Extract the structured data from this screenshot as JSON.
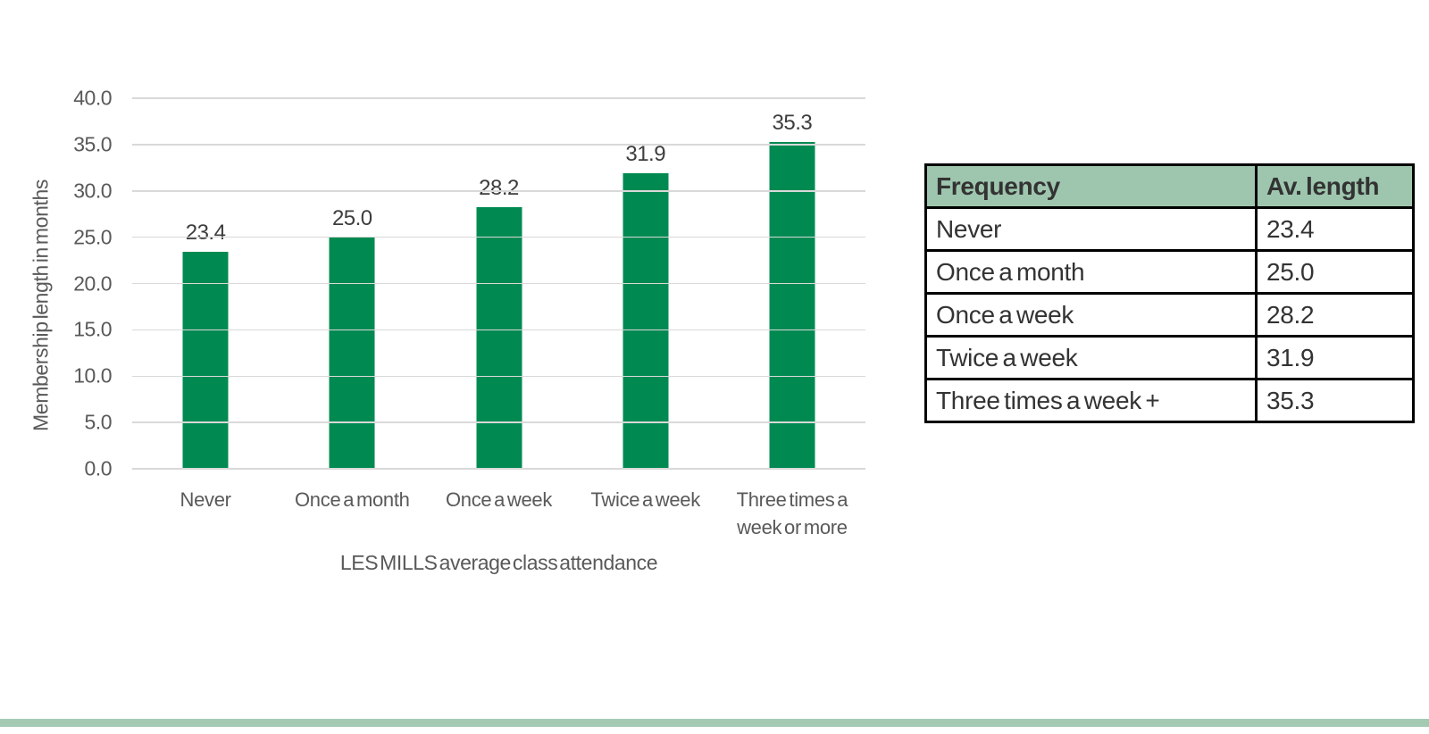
{
  "colors": {
    "bar_green": "#008A52",
    "header_green": "#9EC6AE",
    "footer_strip_green": "#A4CAB4",
    "grid_line": "#D9D9D9",
    "axis_text": "#595959",
    "value_label_text": "#3D3D3D",
    "table_text": "#333333",
    "table_border": "#000000"
  },
  "chart_data": {
    "type": "bar",
    "categories": [
      "Never",
      "Once a month",
      "Once a week",
      "Twice a week",
      "Three times a week or more"
    ],
    "values": [
      23.4,
      25.0,
      28.2,
      31.9,
      35.3
    ],
    "value_labels": [
      "23.4",
      "25.0",
      "28.2",
      "31.9",
      "35.3"
    ],
    "xlabel": "LES MILLS average class attendance",
    "ylabel": "Membership length in months",
    "ylim": [
      0,
      40
    ],
    "yticks": [
      "40.0",
      "35.0",
      "30.0",
      "25.0",
      "20.0",
      "15.0",
      "10.0",
      "5.0",
      "0.0"
    ],
    "grid": true,
    "legend": false,
    "bar_color": "#008A52"
  },
  "table": {
    "headers": [
      "Frequency",
      "Av. length"
    ],
    "rows": [
      {
        "frequency": "Never",
        "av_length": "23.4"
      },
      {
        "frequency": "Once a month",
        "av_length": "25.0"
      },
      {
        "frequency": "Once a week",
        "av_length": "28.2"
      },
      {
        "frequency": "Twice a week",
        "av_length": "31.9"
      },
      {
        "frequency": "Three times a week +",
        "av_length": "35.3"
      }
    ]
  }
}
